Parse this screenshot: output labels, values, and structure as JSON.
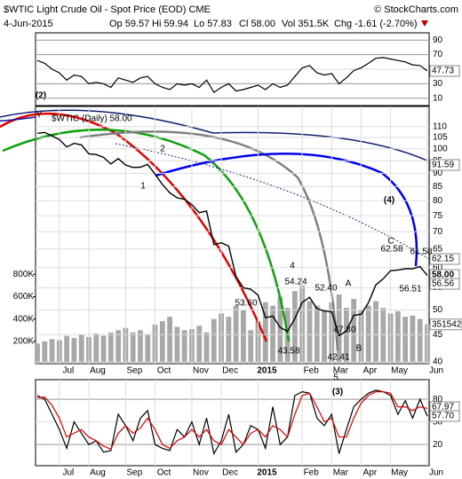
{
  "header": {
    "title": "$WTIC Light Crude Oil - Spot Price (EOD) CME",
    "source": "© StockCharts.com",
    "date": "4-Jun-2015",
    "open": "Op 59.57",
    "high": "Hi 59.94",
    "low": "Lo 57.83",
    "close": "Cl 58.00",
    "volume": "Vol 351.5K",
    "change": "Chg -1.61 (-2.70%)"
  },
  "chart_data": [
    {
      "type": "line",
      "log": true,
      "grid": true,
      "categories": [
        null,
        null,
        null,
        "Jul",
        null,
        null,
        null,
        "Aug",
        null,
        null,
        null,
        null,
        "Sep",
        null,
        null,
        null,
        "Oct",
        null,
        null,
        null,
        null,
        "Nov",
        null,
        null,
        null,
        "Dec",
        null,
        null,
        null,
        null,
        "2015",
        null,
        null,
        null,
        null,
        null,
        "Feb",
        null,
        null,
        null,
        "Mar",
        null,
        null,
        null,
        "Apr",
        null,
        null,
        null,
        "May",
        null,
        null,
        null,
        null,
        "Jun"
      ],
      "series": [
        {
          "name": "$WTIC (Daily) 58.00",
          "color": "#000000",
          "values": [
            106.9,
            107.3,
            105.7,
            104.1,
            100.8,
            102.4,
            101.7,
            97.9,
            97.6,
            96.4,
            93.7,
            95.9,
            93.3,
            92.3,
            92.4,
            93.5,
            89.7,
            85.8,
            82.8,
            81.0,
            80.5,
            78.7,
            76.0,
            76.5,
            66.2,
            66.8,
            65.8,
            57.8,
            55.0,
            54.7,
            53.3,
            48.4,
            48.7,
            46.4,
            45.6,
            48.2,
            51.7,
            52.8,
            50.3,
            49.8,
            49.6,
            44.8,
            45.7,
            48.9,
            49.1,
            51.6,
            55.7,
            57.2,
            59.2,
            59.4,
            59.7,
            59.7,
            60.3,
            58.0
          ]
        }
      ],
      "ylim": [
        39.7,
        120
      ],
      "yticks": [
        40,
        45,
        50,
        55,
        60,
        65,
        70,
        75,
        80,
        85,
        90,
        95,
        100,
        105,
        110
      ],
      "volume": {
        "color": "#a8a8a8",
        "ylim": [
          0,
          2304000
        ],
        "yticks": [
          {
            "value": 200000,
            "label": "200K"
          },
          {
            "value": 400000,
            "label": "400K"
          },
          {
            "value": 600000,
            "label": "600K"
          },
          {
            "value": 800000,
            "label": "800K"
          }
        ],
        "values": [
          180000,
          200000,
          220000,
          210000,
          250000,
          230000,
          260000,
          240000,
          270000,
          250000,
          280000,
          300000,
          320000,
          280000,
          300000,
          260000,
          350000,
          380000,
          420000,
          330000,
          300000,
          310000,
          340000,
          280000,
          400000,
          450000,
          420000,
          520000,
          480000,
          300000,
          380000,
          550000,
          520000,
          600000,
          500000,
          650000,
          700000,
          560000,
          520000,
          480000,
          550000,
          620000,
          500000,
          580000,
          480000,
          520000,
          560000,
          500000,
          450000,
          470000,
          420000,
          430000,
          400000,
          351542
        ],
        "last_label": "351542"
      },
      "right_labels": [
        "91.59",
        "62.15",
        "58.00",
        "56.56"
      ],
      "annotations": [
        "(2)",
        "Y",
        "1",
        "2",
        "4",
        "5",
        "(3)",
        "A",
        "B",
        "C",
        "(4)",
        "53.60",
        "43.58",
        "54.24",
        "52.40",
        "47.80",
        "42.41",
        "62.58",
        "61.58",
        "56.51"
      ]
    },
    {
      "type": "line",
      "grid": true,
      "series": [
        {
          "color": "#000000",
          "values": [
            62,
            58,
            50,
            45,
            35,
            42,
            40,
            30,
            32,
            30,
            25,
            38,
            35,
            32,
            38,
            40,
            30,
            25,
            22,
            30,
            28,
            30,
            25,
            35,
            18,
            25,
            30,
            20,
            22,
            25,
            28,
            22,
            30,
            25,
            28,
            40,
            52,
            55,
            45,
            42,
            44,
            30,
            38,
            48,
            52,
            58,
            65,
            66,
            64,
            62,
            60,
            56,
            55,
            47.73
          ]
        }
      ],
      "ylim": [
        0,
        100
      ],
      "yticks": [
        10,
        30,
        50,
        70,
        90
      ],
      "right_labels": [
        "47.73"
      ]
    },
    {
      "type": "line",
      "grid": true,
      "categories": [
        null,
        null,
        null,
        "Jul",
        null,
        null,
        null,
        "Aug",
        null,
        null,
        null,
        null,
        "Sep",
        null,
        null,
        null,
        "Oct",
        null,
        null,
        null,
        null,
        "Nov",
        null,
        null,
        null,
        "Dec",
        null,
        null,
        null,
        null,
        "2015",
        null,
        null,
        null,
        null,
        null,
        "Feb",
        null,
        null,
        null,
        "Mar",
        null,
        null,
        null,
        "Apr",
        null,
        null,
        null,
        "May",
        null,
        null,
        null,
        null,
        "Jun"
      ],
      "series": [
        {
          "color": "#000000",
          "values": [
            85,
            80,
            60,
            40,
            15,
            50,
            35,
            20,
            25,
            10,
            12,
            60,
            45,
            25,
            55,
            65,
            20,
            15,
            12,
            40,
            30,
            50,
            20,
            55,
            8,
            25,
            60,
            10,
            20,
            45,
            40,
            15,
            70,
            20,
            30,
            85,
            90,
            88,
            55,
            45,
            60,
            8,
            40,
            70,
            80,
            88,
            92,
            90,
            85,
            60,
            78,
            55,
            80,
            57.7
          ]
        },
        {
          "color": "#e00000",
          "values": [
            82,
            83,
            72,
            55,
            30,
            35,
            40,
            30,
            25,
            18,
            14,
            35,
            45,
            35,
            42,
            55,
            40,
            20,
            15,
            25,
            30,
            40,
            30,
            40,
            25,
            20,
            40,
            30,
            20,
            35,
            40,
            30,
            45,
            40,
            30,
            60,
            85,
            88,
            70,
            50,
            55,
            30,
            30,
            55,
            75,
            85,
            90,
            90,
            88,
            70,
            70,
            65,
            70,
            67.97
          ]
        }
      ],
      "ylim": [
        -8,
        106
      ],
      "yticks": [
        20,
        50,
        80
      ],
      "right_labels": [
        "67.97",
        "57.70"
      ]
    }
  ]
}
